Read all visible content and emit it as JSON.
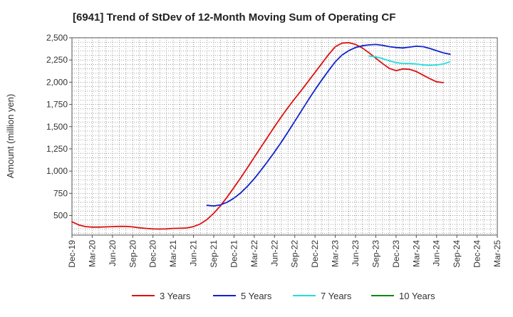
{
  "chart_data": {
    "type": "line",
    "title": "[6941]  Trend of StDev of 12-Month Moving Sum of Operating CF",
    "xlabel": "",
    "ylabel": "Amount (million yen)",
    "ylim": [
      280,
      2500
    ],
    "yticks": [
      500,
      750,
      1000,
      1250,
      1500,
      1750,
      2000,
      2250,
      2500
    ],
    "ytick_labels": [
      "500",
      "750",
      "1,000",
      "1,250",
      "1,500",
      "1,750",
      "2,000",
      "2,250",
      "2,500"
    ],
    "x_start_month": "Dec-19",
    "x_months_total": 63,
    "xtick_labels": [
      "Dec-19",
      "Mar-20",
      "Jun-20",
      "Sep-20",
      "Dec-20",
      "Mar-21",
      "Jun-21",
      "Sep-21",
      "Dec-21",
      "Mar-22",
      "Jun-22",
      "Sep-22",
      "Dec-22",
      "Mar-23",
      "Jun-23",
      "Sep-23",
      "Dec-23",
      "Mar-24",
      "Jun-24",
      "Sep-24",
      "Dec-24",
      "Mar-25"
    ],
    "grid": true,
    "legend_position": "bottom",
    "series": [
      {
        "name": "3 Years",
        "color": "#dd1111",
        "start_month": "Dec-19",
        "values": [
          430,
          395,
          375,
          370,
          370,
          372,
          375,
          378,
          378,
          372,
          362,
          355,
          350,
          348,
          350,
          355,
          357,
          360,
          375,
          405,
          455,
          525,
          610,
          710,
          815,
          925,
          1040,
          1155,
          1270,
          1385,
          1500,
          1610,
          1715,
          1815,
          1910,
          2010,
          2110,
          2210,
          2310,
          2400,
          2440,
          2445,
          2425,
          2385,
          2330,
          2270,
          2210,
          2155,
          2130,
          2150,
          2145,
          2120,
          2080,
          2040,
          2005,
          1995
        ]
      },
      {
        "name": "5 Years",
        "color": "#1122cc",
        "start_month": "Aug-21",
        "values": [
          615,
          608,
          620,
          650,
          695,
          755,
          830,
          915,
          1010,
          1110,
          1215,
          1325,
          1440,
          1560,
          1680,
          1800,
          1915,
          2025,
          2130,
          2230,
          2305,
          2355,
          2390,
          2410,
          2420,
          2425,
          2415,
          2400,
          2390,
          2385,
          2395,
          2405,
          2400,
          2380,
          2355,
          2330,
          2315
        ]
      },
      {
        "name": "7 Years",
        "color": "#22dddd",
        "start_month": "Aug-23",
        "values": [
          2295,
          2285,
          2265,
          2240,
          2220,
          2210,
          2210,
          2205,
          2195,
          2190,
          2195,
          2205,
          2230
        ]
      },
      {
        "name": "10 Years",
        "color": "#118811",
        "start_month": "",
        "values": []
      }
    ]
  }
}
